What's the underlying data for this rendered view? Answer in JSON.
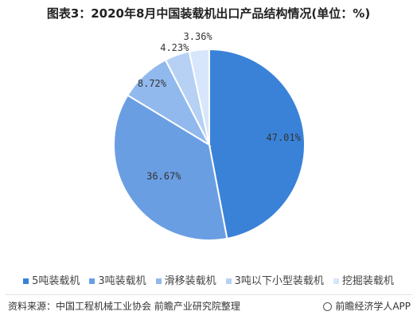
{
  "header": {
    "title": "图表3：2020年8月中国装载机出口产品结构情况(单位：%)"
  },
  "chart_data": {
    "type": "pie",
    "categories": [
      "5吨装载机",
      "3吨装载机",
      "滑移装载机",
      "3吨以下小型装载机",
      "挖掘装载机"
    ],
    "values": [
      47.01,
      36.67,
      8.72,
      4.23,
      3.36
    ],
    "labels": [
      "47.01%",
      "36.67%",
      "8.72%",
      "4.23%",
      "3.36%"
    ],
    "colors": [
      "#3a82d8",
      "#6a9ee3",
      "#91b9ee",
      "#b6d1f4",
      "#d7e6fa"
    ],
    "legend_position": "bottom"
  },
  "footer": {
    "source": "资料来源：中国工程机械工业协会 前瞻产业研究院整理",
    "brand": "前瞻经济学人APP"
  }
}
